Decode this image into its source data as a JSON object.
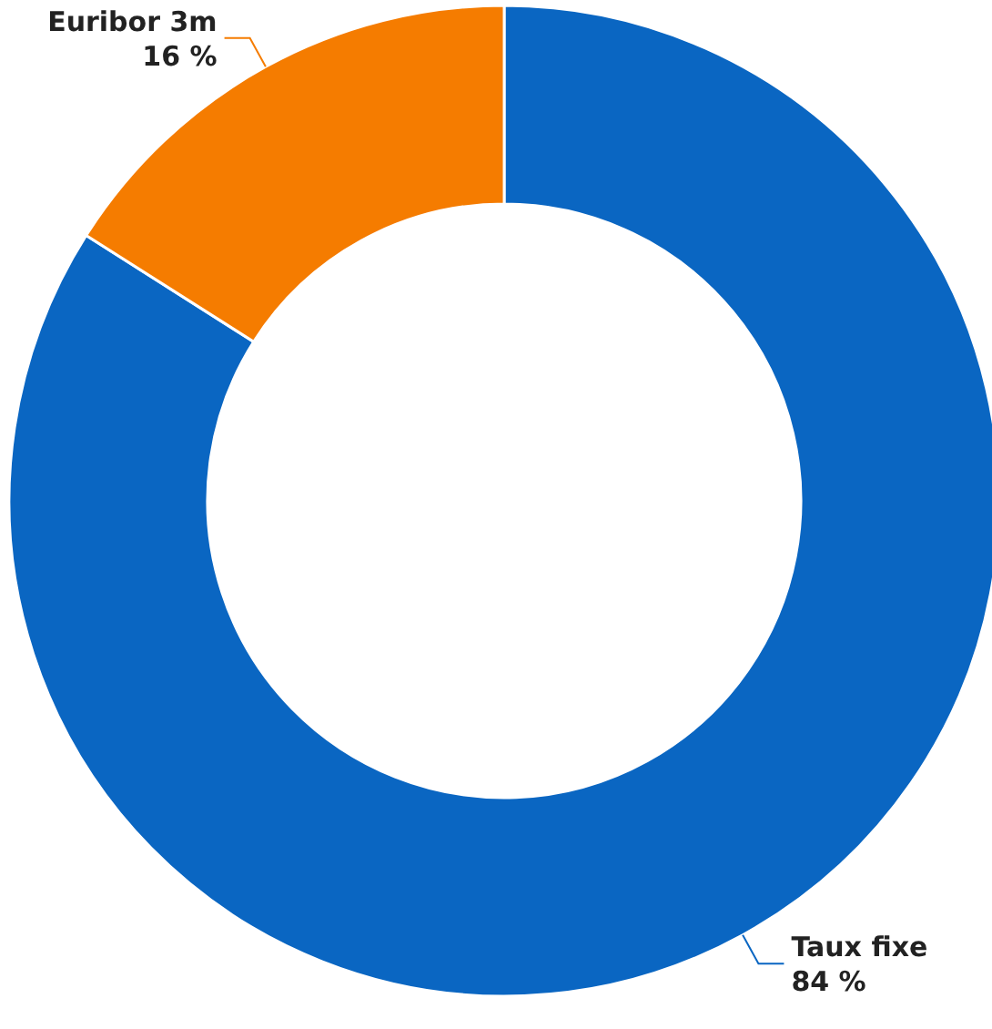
{
  "chart_data": {
    "type": "donut",
    "categories": [
      "Taux fixe",
      "Euribor 3m"
    ],
    "values": [
      84,
      16
    ],
    "colors": [
      "#0a66c2",
      "#f57c00"
    ],
    "value_labels": [
      "84 %",
      "16 %"
    ],
    "legend": false
  }
}
